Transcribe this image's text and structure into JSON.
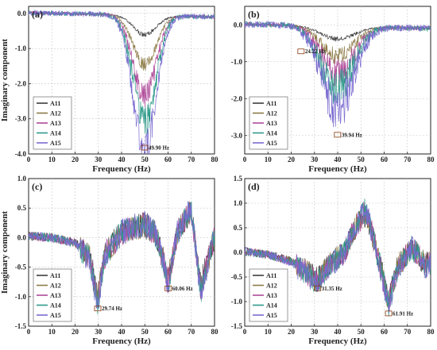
{
  "colors": {
    "A11": "#3c3c3c",
    "A12": "#8c7a46",
    "A13": "#b04a9a",
    "A14": "#2e9a8a",
    "A15": "#7a6ad0"
  },
  "chart_data": [
    {
      "panel": "(a)",
      "type": "line",
      "xlabel": "Frequency (Hz)",
      "ylabel": "Imaginary component",
      "xlim": [
        0,
        80
      ],
      "ylim": [
        -4.0,
        0.2
      ],
      "xticks": [
        "0",
        "10",
        "20",
        "30",
        "40",
        "50",
        "60",
        "70",
        "80"
      ],
      "yticks": [
        "0.0",
        "-1.0",
        "-2.0",
        "-3.0",
        "-4.0"
      ],
      "grid": true,
      "legend": "bottom-left",
      "series_names": [
        "A11",
        "A12",
        "A13",
        "A14",
        "A15"
      ],
      "trend": {
        "kind": "dip",
        "center": 49.9,
        "width": 7,
        "depths": [
          0.55,
          1.4,
          2.3,
          3.0,
          3.8
        ],
        "offset": 0.02,
        "noise": [
          0.05,
          0.15,
          0.3,
          0.4,
          0.45
        ]
      },
      "annotations": [
        {
          "x": 49.9,
          "y": -3.82,
          "text": "49.90 Hz"
        }
      ]
    },
    {
      "panel": "(b)",
      "type": "line",
      "xlabel": "Frequency (Hz)",
      "ylabel": "",
      "xlim": [
        0,
        80
      ],
      "ylim": [
        -3.5,
        0.5
      ],
      "xticks": [
        "0",
        "10",
        "20",
        "30",
        "40",
        "50",
        "60",
        "70",
        "80"
      ],
      "yticks": [
        "0.0",
        "-1.0",
        "-2.0",
        "-3.0"
      ],
      "grid": true,
      "legend": "bottom-left",
      "series_names": [
        "A11",
        "A12",
        "A13",
        "A14",
        "A15"
      ],
      "trend": {
        "kind": "dip",
        "center": 39.94,
        "width": 10,
        "depths": [
          0.35,
          0.8,
          1.3,
          1.7,
          2.2
        ],
        "offset": 0.02,
        "noise": [
          0.05,
          0.2,
          0.35,
          0.45,
          0.55
        ]
      },
      "annotations": [
        {
          "x": 24.22,
          "y": -0.72,
          "text": "24.22 Hz"
        },
        {
          "x": 39.94,
          "y": -2.98,
          "text": "39.94 Hz"
        }
      ]
    },
    {
      "panel": "(c)",
      "type": "line",
      "xlabel": "Frequency (Hz)",
      "ylabel": "Imaginary component",
      "xlim": [
        0,
        80
      ],
      "ylim": [
        -1.5,
        1.0
      ],
      "xticks": [
        "0",
        "10",
        "20",
        "30",
        "40",
        "50",
        "60",
        "70",
        "80"
      ],
      "yticks": [
        "1.0",
        "0.5",
        "0.0",
        "-0.5",
        "-1.0",
        "-1.5"
      ],
      "grid": true,
      "legend": "bottom-left",
      "series_names": [
        "A11",
        "A12",
        "A13",
        "A14",
        "A15"
      ],
      "trend": {
        "kind": "wavy",
        "points": [
          [
            0,
            0.03
          ],
          [
            10,
            0.0
          ],
          [
            20,
            -0.1
          ],
          [
            26,
            -0.35
          ],
          [
            29.7,
            -1.15
          ],
          [
            33,
            -0.3
          ],
          [
            40,
            0.1
          ],
          [
            50,
            0.25
          ],
          [
            55,
            0.05
          ],
          [
            60.06,
            -0.8
          ],
          [
            64,
            0.1
          ],
          [
            70,
            0.5
          ],
          [
            74,
            -0.95
          ],
          [
            78,
            -0.3
          ],
          [
            80,
            0.0
          ]
        ],
        "noise": 0.22
      },
      "annotations": [
        {
          "x": 29.74,
          "y": -1.2,
          "text": "29.74 Hz"
        },
        {
          "x": 60.06,
          "y": -0.86,
          "text": "60.06 Hz"
        }
      ]
    },
    {
      "panel": "(d)",
      "type": "line",
      "xlabel": "Frequency (Hz)",
      "ylabel": "",
      "xlim": [
        0,
        80
      ],
      "ylim": [
        -1.5,
        1.5
      ],
      "xticks": [
        "0",
        "10",
        "20",
        "30",
        "40",
        "50",
        "60",
        "70",
        "80"
      ],
      "yticks": [
        "1.5",
        "1.0",
        "0.5",
        "0.0",
        "-0.5",
        "-1.0",
        "-1.5"
      ],
      "grid": true,
      "legend": "bottom-left",
      "series_names": [
        "A11",
        "A12",
        "A13",
        "A14",
        "A15"
      ],
      "trend": {
        "kind": "wavy",
        "points": [
          [
            0,
            0.02
          ],
          [
            10,
            -0.05
          ],
          [
            20,
            -0.2
          ],
          [
            27,
            -0.45
          ],
          [
            31.35,
            -0.65
          ],
          [
            36,
            -0.3
          ],
          [
            43,
            0.0
          ],
          [
            48,
            0.6
          ],
          [
            52,
            0.9
          ],
          [
            56,
            0.2
          ],
          [
            61.91,
            -1.1
          ],
          [
            66,
            -0.3
          ],
          [
            72,
            0.1
          ],
          [
            78,
            -0.3
          ],
          [
            80,
            -0.2
          ]
        ],
        "noise": 0.25
      },
      "annotations": [
        {
          "x": 31.35,
          "y": -0.73,
          "text": "31.35 Hz"
        },
        {
          "x": 61.91,
          "y": -1.24,
          "text": "61.91 Hz"
        }
      ]
    }
  ]
}
